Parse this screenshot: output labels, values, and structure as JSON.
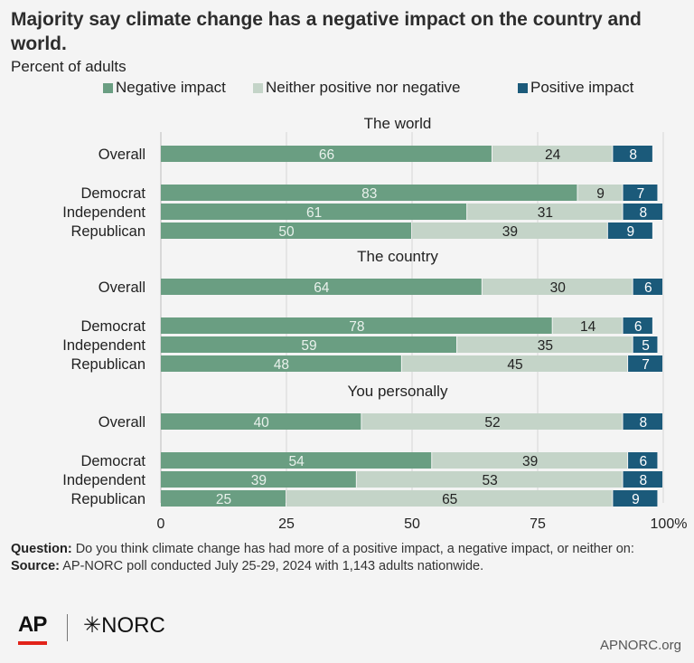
{
  "title": "Majority say climate change has a negative impact on the country and world.",
  "subtitle": "Percent of adults",
  "notes": {
    "question_label": "Question:",
    "question_text": "Do you think climate change has had more of a positive impact, a negative impact, or neither on:",
    "source_label": "Source:",
    "source_text": "AP-NORC poll conducted July 25-29, 2024 with 1,143 adults nationwide."
  },
  "logos": {
    "ap": "AP",
    "norc": "✳NORC"
  },
  "credit": "APNORC.org",
  "colors": {
    "negative": "#6a9e82",
    "neither": "#c4d4c8",
    "positive": "#1b5a7a"
  },
  "chart_data": {
    "type": "bar",
    "orientation": "horizontal",
    "stacked": true,
    "legend": {
      "position": "top",
      "entries": [
        "Negative impact",
        "Neither positive nor negative",
        "Positive impact"
      ]
    },
    "x_ticks": [
      "0",
      "25",
      "50",
      "75",
      "100%"
    ],
    "xlim": [
      0,
      100
    ],
    "series_names": [
      "Negative impact",
      "Neither positive nor negative",
      "Positive impact"
    ],
    "groups": [
      {
        "title": "The world",
        "rows": [
          {
            "label": "Overall",
            "values": [
              66,
              24,
              8
            ]
          },
          {
            "label": "Democrat",
            "values": [
              83,
              9,
              7
            ]
          },
          {
            "label": "Independent",
            "values": [
              61,
              31,
              8
            ]
          },
          {
            "label": "Republican",
            "values": [
              50,
              39,
              9
            ]
          }
        ]
      },
      {
        "title": "The country",
        "rows": [
          {
            "label": "Overall",
            "values": [
              64,
              30,
              6
            ]
          },
          {
            "label": "Democrat",
            "values": [
              78,
              14,
              6
            ]
          },
          {
            "label": "Independent",
            "values": [
              59,
              35,
              5
            ]
          },
          {
            "label": "Republican",
            "values": [
              48,
              45,
              7
            ]
          }
        ]
      },
      {
        "title": "You personally",
        "rows": [
          {
            "label": "Overall",
            "values": [
              40,
              52,
              8
            ]
          },
          {
            "label": "Democrat",
            "values": [
              54,
              39,
              6
            ]
          },
          {
            "label": "Independent",
            "values": [
              39,
              53,
              8
            ]
          },
          {
            "label": "Republican",
            "values": [
              25,
              65,
              9
            ]
          }
        ]
      }
    ]
  }
}
